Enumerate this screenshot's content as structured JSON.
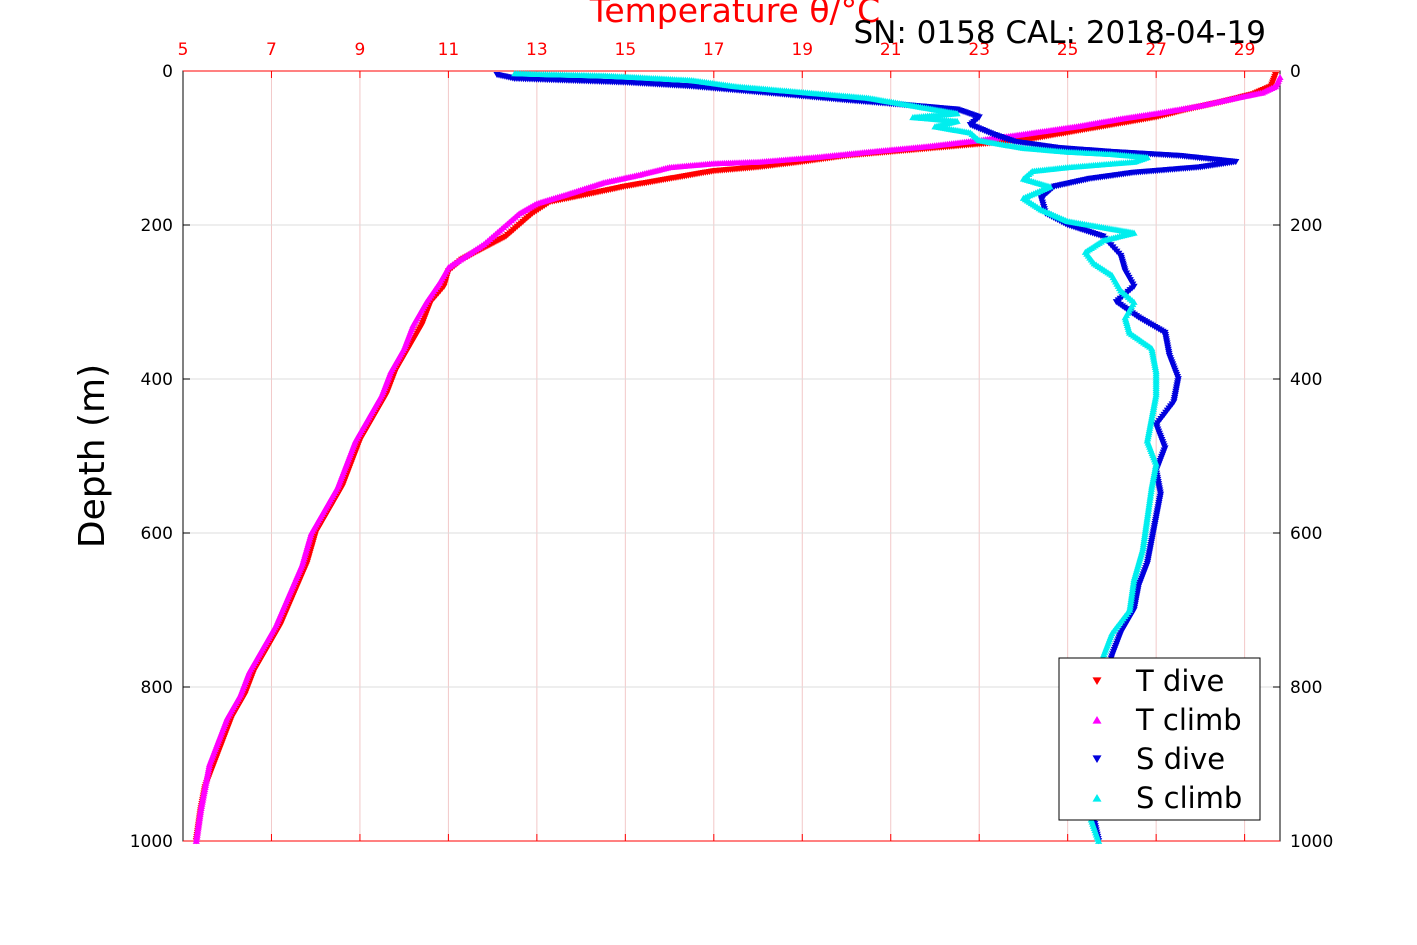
{
  "chart_data": {
    "type": "scatter",
    "title": "Temperature θ/°C",
    "subtitle": "SN: 0158  CAL: 2018-04-19",
    "ylabel": "Depth (m)",
    "xlim": [
      5,
      29.8
    ],
    "ylim": [
      0,
      1000
    ],
    "y_inverted": true,
    "xticks": [
      "5",
      "7",
      "9",
      "11",
      "13",
      "15",
      "17",
      "19",
      "21",
      "23",
      "25",
      "27",
      "29"
    ],
    "xtick_values": [
      5,
      7,
      9,
      11,
      13,
      15,
      17,
      19,
      21,
      23,
      25,
      27,
      29
    ],
    "yticks": [
      "0",
      "200",
      "400",
      "600",
      "800",
      "1000"
    ],
    "ytick_values": [
      0,
      200,
      400,
      600,
      800,
      1000
    ],
    "grid": true,
    "legend_position": "bottom-right",
    "colors": {
      "axis_top": "#ff0000",
      "grid": "#f2c8c8",
      "axis": "#000000"
    },
    "series": [
      {
        "name": "T dive",
        "marker": "triangle-down",
        "color": "#ff0000",
        "points": [
          [
            29.7,
            5
          ],
          [
            29.6,
            20
          ],
          [
            29.2,
            30
          ],
          [
            28.5,
            40
          ],
          [
            27.7,
            50
          ],
          [
            27.0,
            60
          ],
          [
            26.0,
            70
          ],
          [
            25.0,
            80
          ],
          [
            24.0,
            90
          ],
          [
            23.0,
            95
          ],
          [
            22.0,
            100
          ],
          [
            21.0,
            105
          ],
          [
            20.0,
            110
          ],
          [
            19.0,
            118
          ],
          [
            18.0,
            125
          ],
          [
            17.0,
            130
          ],
          [
            16.0,
            140
          ],
          [
            15.0,
            150
          ],
          [
            14.0,
            162
          ],
          [
            13.3,
            170
          ],
          [
            12.9,
            185
          ],
          [
            12.6,
            200
          ],
          [
            12.3,
            215
          ],
          [
            11.8,
            230
          ],
          [
            11.3,
            245
          ],
          [
            11.0,
            260
          ],
          [
            10.9,
            280
          ],
          [
            10.6,
            300
          ],
          [
            10.4,
            330
          ],
          [
            10.1,
            360
          ],
          [
            9.8,
            390
          ],
          [
            9.6,
            420
          ],
          [
            9.3,
            450
          ],
          [
            9.0,
            480
          ],
          [
            8.8,
            510
          ],
          [
            8.6,
            540
          ],
          [
            8.3,
            570
          ],
          [
            8.0,
            600
          ],
          [
            7.8,
            640
          ],
          [
            7.5,
            680
          ],
          [
            7.2,
            720
          ],
          [
            6.9,
            750
          ],
          [
            6.6,
            780
          ],
          [
            6.4,
            810
          ],
          [
            6.1,
            840
          ],
          [
            5.9,
            870
          ],
          [
            5.7,
            900
          ],
          [
            5.5,
            930
          ],
          [
            5.4,
            960
          ],
          [
            5.3,
            1000
          ]
        ]
      },
      {
        "name": "T climb",
        "marker": "triangle-up",
        "color": "#ff00ff",
        "points": [
          [
            29.8,
            8
          ],
          [
            29.7,
            20
          ],
          [
            29.4,
            28
          ],
          [
            28.8,
            35
          ],
          [
            28.0,
            45
          ],
          [
            27.0,
            55
          ],
          [
            26.2,
            62
          ],
          [
            25.2,
            72
          ],
          [
            24.0,
            82
          ],
          [
            23.0,
            90
          ],
          [
            21.8,
            98
          ],
          [
            20.5,
            105
          ],
          [
            19.3,
            112
          ],
          [
            18.0,
            118
          ],
          [
            17.0,
            120
          ],
          [
            16.0,
            125
          ],
          [
            15.3,
            135
          ],
          [
            14.5,
            145
          ],
          [
            13.8,
            158
          ],
          [
            13.0,
            172
          ],
          [
            12.6,
            185
          ],
          [
            12.2,
            205
          ],
          [
            11.8,
            225
          ],
          [
            11.4,
            240
          ],
          [
            11.0,
            255
          ],
          [
            10.8,
            275
          ],
          [
            10.5,
            300
          ],
          [
            10.2,
            330
          ],
          [
            10.0,
            360
          ],
          [
            9.7,
            390
          ],
          [
            9.5,
            420
          ],
          [
            9.2,
            450
          ],
          [
            8.9,
            480
          ],
          [
            8.7,
            510
          ],
          [
            8.5,
            540
          ],
          [
            8.2,
            570
          ],
          [
            7.9,
            600
          ],
          [
            7.7,
            640
          ],
          [
            7.4,
            680
          ],
          [
            7.1,
            720
          ],
          [
            6.8,
            750
          ],
          [
            6.5,
            780
          ],
          [
            6.3,
            810
          ],
          [
            6.0,
            840
          ],
          [
            5.8,
            870
          ],
          [
            5.6,
            900
          ],
          [
            5.5,
            930
          ],
          [
            5.4,
            960
          ],
          [
            5.3,
            1000
          ]
        ]
      },
      {
        "name": "S dive",
        "marker": "triangle-down",
        "color": "#0000dd",
        "points": [
          [
            12.1,
            5
          ],
          [
            12.5,
            10
          ],
          [
            15.0,
            15
          ],
          [
            16.5,
            20
          ],
          [
            18.5,
            30
          ],
          [
            20.0,
            38
          ],
          [
            21.5,
            45
          ],
          [
            22.5,
            50
          ],
          [
            23.0,
            60
          ],
          [
            22.8,
            70
          ],
          [
            23.3,
            82
          ],
          [
            23.8,
            92
          ],
          [
            24.8,
            100
          ],
          [
            26.0,
            105
          ],
          [
            27.5,
            110
          ],
          [
            28.8,
            118
          ],
          [
            28.0,
            125
          ],
          [
            26.5,
            132
          ],
          [
            25.5,
            140
          ],
          [
            24.7,
            150
          ],
          [
            24.4,
            165
          ],
          [
            24.5,
            185
          ],
          [
            25.0,
            200
          ],
          [
            25.8,
            215
          ],
          [
            26.2,
            240
          ],
          [
            26.3,
            260
          ],
          [
            26.5,
            280
          ],
          [
            26.1,
            300
          ],
          [
            26.6,
            320
          ],
          [
            27.2,
            340
          ],
          [
            27.3,
            370
          ],
          [
            27.5,
            400
          ],
          [
            27.4,
            430
          ],
          [
            27.0,
            460
          ],
          [
            27.2,
            490
          ],
          [
            27.0,
            520
          ],
          [
            27.1,
            550
          ],
          [
            27.0,
            580
          ],
          [
            26.9,
            610
          ],
          [
            26.8,
            640
          ],
          [
            26.6,
            670
          ],
          [
            26.5,
            700
          ],
          [
            26.2,
            730
          ],
          [
            26.0,
            760
          ],
          [
            25.8,
            800
          ],
          [
            25.7,
            850
          ],
          [
            25.6,
            900
          ],
          [
            25.5,
            950
          ],
          [
            25.7,
            1000
          ]
        ]
      },
      {
        "name": "S climb",
        "marker": "triangle-up",
        "color": "#00eeee",
        "points": [
          [
            12.5,
            3
          ],
          [
            13.0,
            4
          ],
          [
            14.5,
            6
          ],
          [
            15.2,
            8
          ],
          [
            16.5,
            12
          ],
          [
            17.5,
            20
          ],
          [
            18.5,
            25
          ],
          [
            19.5,
            30
          ],
          [
            20.5,
            35
          ],
          [
            21.2,
            42
          ],
          [
            22.0,
            50
          ],
          [
            22.5,
            55
          ],
          [
            21.5,
            60
          ],
          [
            22.5,
            65
          ],
          [
            22.0,
            72
          ],
          [
            22.8,
            80
          ],
          [
            23.0,
            90
          ],
          [
            24.0,
            100
          ],
          [
            25.0,
            105
          ],
          [
            26.0,
            108
          ],
          [
            26.8,
            112
          ],
          [
            26.5,
            118
          ],
          [
            25.0,
            125
          ],
          [
            24.2,
            130
          ],
          [
            24.0,
            140
          ],
          [
            24.6,
            150
          ],
          [
            24.0,
            165
          ],
          [
            24.4,
            180
          ],
          [
            25.0,
            195
          ],
          [
            26.0,
            205
          ],
          [
            26.5,
            210
          ],
          [
            25.8,
            220
          ],
          [
            25.4,
            235
          ],
          [
            25.6,
            250
          ],
          [
            26.0,
            265
          ],
          [
            26.2,
            285
          ],
          [
            26.5,
            300
          ],
          [
            26.3,
            320
          ],
          [
            26.4,
            340
          ],
          [
            26.9,
            360
          ],
          [
            27.0,
            390
          ],
          [
            27.0,
            420
          ],
          [
            26.9,
            450
          ],
          [
            26.8,
            480
          ],
          [
            27.0,
            510
          ],
          [
            26.9,
            540
          ],
          [
            26.8,
            580
          ],
          [
            26.7,
            620
          ],
          [
            26.5,
            660
          ],
          [
            26.4,
            700
          ],
          [
            26.0,
            730
          ],
          [
            25.8,
            760
          ],
          [
            25.6,
            800
          ],
          [
            25.5,
            850
          ],
          [
            25.5,
            900
          ],
          [
            25.4,
            950
          ],
          [
            25.7,
            1000
          ]
        ]
      }
    ]
  }
}
